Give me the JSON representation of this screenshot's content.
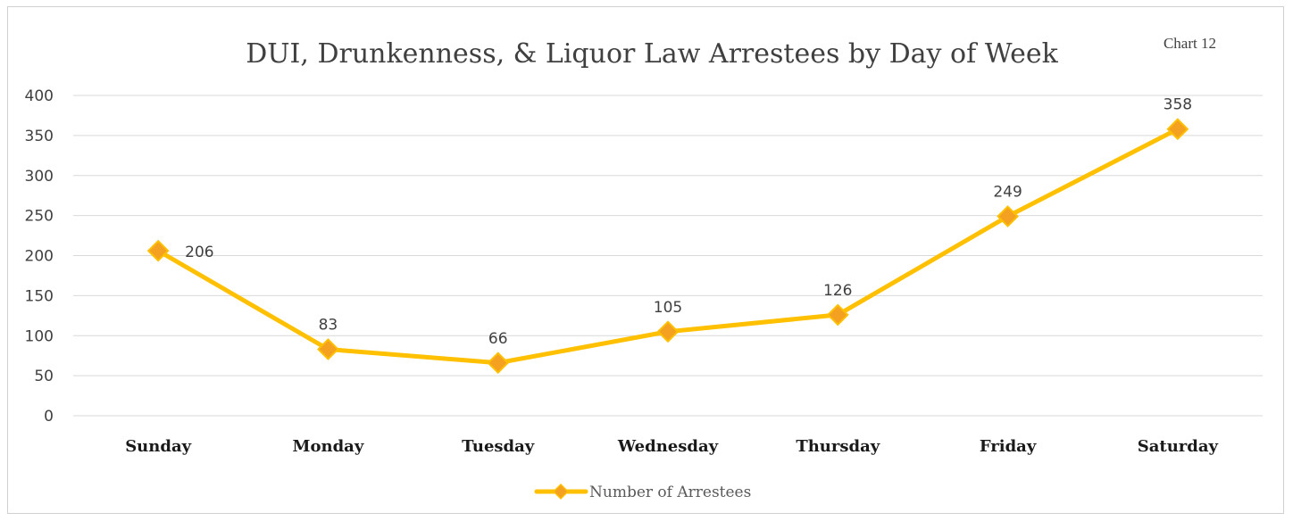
{
  "chart_data": {
    "type": "line",
    "title": "DUI, Drunkenness, & Liquor Law Arrestees by Day of Week",
    "corner_label": "Chart 12",
    "categories": [
      "Sunday",
      "Monday",
      "Tuesday",
      "Wednesday",
      "Thursday",
      "Friday",
      "Saturday"
    ],
    "series": [
      {
        "name": "Number of Arrestees",
        "values": [
          206,
          83,
          66,
          105,
          126,
          249,
          358
        ],
        "line_color": "#FFC000",
        "marker_color": "#F4A020",
        "marker": "diamond"
      }
    ],
    "ylim": [
      0,
      400
    ],
    "yticks": [
      0,
      50,
      100,
      150,
      200,
      250,
      300,
      350,
      400
    ],
    "xlabel": "",
    "ylabel": "",
    "grid": true,
    "legend_position": "bottom",
    "data_labels": true
  }
}
